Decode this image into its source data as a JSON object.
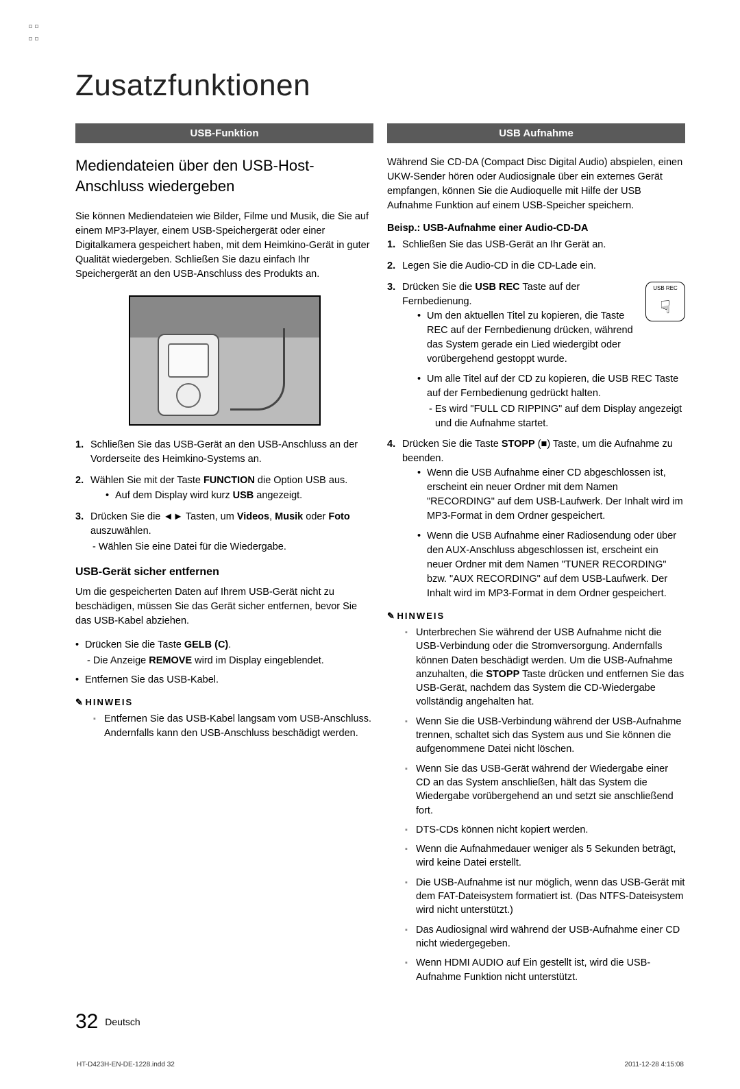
{
  "page_title": "Zusatzfunktionen",
  "left": {
    "section_header": "USB-Funktion",
    "heading": "Mediendateien über den USB-Host-Anschluss wiedergeben",
    "intro": "Sie können Mediendateien wie Bilder, Filme und Musik, die Sie auf einem MP3-Player, einem USB-Speichergerät oder einer Digitalkamera gespeichert haben, mit dem Heimkino-Gerät in guter Qualität wiedergeben. Schließen Sie dazu einfach Ihr Speichergerät an den USB-Anschluss des Produkts an.",
    "steps": {
      "s1": "Schließen Sie das USB-Gerät an den USB-Anschluss an der Vorderseite des Heimkino-Systems an.",
      "s2_pre": "Wählen Sie mit der Taste ",
      "s2_bold": "FUNCTION",
      "s2_post": " die Option USB aus.",
      "s2_sub_pre": "Auf dem Display wird kurz ",
      "s2_sub_bold": "USB",
      "s2_sub_post": " angezeigt.",
      "s3_pre": "Drücken Sie die ◄► Tasten, um ",
      "s3_b1": "Videos",
      "s3_mid": ", ",
      "s3_b2": "Musik",
      "s3_mid2": " oder ",
      "s3_b3": "Foto",
      "s3_post": " auszuwählen.",
      "s3_sub": "- Wählen Sie eine Datei für die Wiedergabe."
    },
    "sub_heading": "USB-Gerät sicher entfernen",
    "remove_intro": "Um die gespeicherten Daten auf Ihrem USB-Gerät nicht zu beschädigen, müssen Sie das Gerät sicher entfernen, bevor Sie das USB-Kabel abziehen.",
    "remove": {
      "b1_pre": "Drücken Sie die Taste ",
      "b1_bold": "GELB (C)",
      "b1_post": ".",
      "b1_sub_pre": "- Die Anzeige ",
      "b1_sub_bold": "REMOVE",
      "b1_sub_post": " wird im Display eingeblendet.",
      "b2": "Entfernen Sie das USB-Kabel."
    },
    "note_label": "HINWEIS",
    "note1": "Entfernen Sie das USB-Kabel langsam vom USB-Anschluss. Andernfalls kann den USB-Anschluss beschädigt werden."
  },
  "right": {
    "section_header": "USB Aufnahme",
    "intro": "Während Sie CD-DA (Compact Disc Digital Audio) abspielen, einen UKW-Sender hören oder Audiosignale über ein externes Gerät empfangen, können Sie die Audioquelle mit Hilfe der USB Aufnahme Funktion auf einem USB-Speicher speichern.",
    "example_heading": "Beisp.: USB-Aufnahme einer Audio-CD-DA",
    "icon_label": "USB REC",
    "steps": {
      "s1": "Schließen Sie das USB-Gerät an Ihr Gerät an.",
      "s2": "Legen Sie die Audio-CD in die CD-Lade ein.",
      "s3_pre": "Drücken Sie die ",
      "s3_bold": "USB REC",
      "s3_post": " Taste auf der Fernbedienung.",
      "s3_b1": "Um den aktuellen Titel zu kopieren, die Taste REC auf der Fernbedienung drücken, während das System gerade ein Lied wiedergibt oder vorübergehend gestoppt wurde.",
      "s3_b2": "Um alle Titel auf der CD zu kopieren, die USB REC Taste auf der Fernbedienung gedrückt halten.",
      "s3_b2_sub": "- Es wird \"FULL CD RIPPING\" auf dem Display angezeigt und die Aufnahme startet.",
      "s4_pre": "Drücken Sie die Taste ",
      "s4_bold": "STOPP",
      "s4_post": " (■) Taste, um die Aufnahme zu beenden.",
      "s4_b1": "Wenn die USB Aufnahme einer CD abgeschlossen ist, erscheint ein neuer Ordner mit dem Namen \"RECORDING\" auf dem USB-Laufwerk. Der Inhalt wird im MP3-Format in dem Ordner gespeichert.",
      "s4_b2": "Wenn die USB Aufnahme einer Radiosendung oder über den AUX-Anschluss abgeschlossen ist, erscheint ein neuer Ordner mit dem Namen \"TUNER RECORDING\" bzw. \"AUX RECORDING\" auf dem USB-Laufwerk. Der Inhalt wird im MP3-Format in dem Ordner gespeichert."
    },
    "note_label": "HINWEIS",
    "notes": {
      "n1_pre": "Unterbrechen Sie während der USB Aufnahme nicht die USB-Verbindung oder die Stromversorgung. Andernfalls können Daten beschädigt werden. Um die USB-Aufnahme anzuhalten, die ",
      "n1_bold": "STOPP",
      "n1_post": " Taste drücken und entfernen Sie das USB-Gerät, nachdem das System die CD-Wiedergabe vollständig angehalten hat.",
      "n2": "Wenn Sie die USB-Verbindung während der USB-Aufnahme trennen, schaltet sich das System aus und Sie können die aufgenommene Datei nicht löschen.",
      "n3": "Wenn Sie das USB-Gerät während der Wiedergabe einer CD an das System anschließen, hält das System die Wiedergabe vorübergehend an und setzt sie anschließend fort.",
      "n4": "DTS-CDs können nicht kopiert werden.",
      "n5": "Wenn die Aufnahmedauer weniger als 5 Sekunden beträgt, wird keine Datei erstellt.",
      "n6": "Die USB-Aufnahme ist nur möglich, wenn das USB-Gerät mit dem FAT-Dateisystem formatiert ist. (Das NTFS-Dateisystem wird nicht unterstützt.)",
      "n7": "Das Audiosignal wird während der USB-Aufnahme einer CD nicht wiedergegeben.",
      "n8": "Wenn HDMI AUDIO auf Ein gestellt ist, wird die USB-Aufnahme Funktion nicht unterstützt."
    }
  },
  "footer": {
    "page_num": "32",
    "lang": "Deutsch",
    "doc": "HT-D423H-EN-DE-1228.indd   32",
    "date": "2011-12-28   4:15:08"
  }
}
